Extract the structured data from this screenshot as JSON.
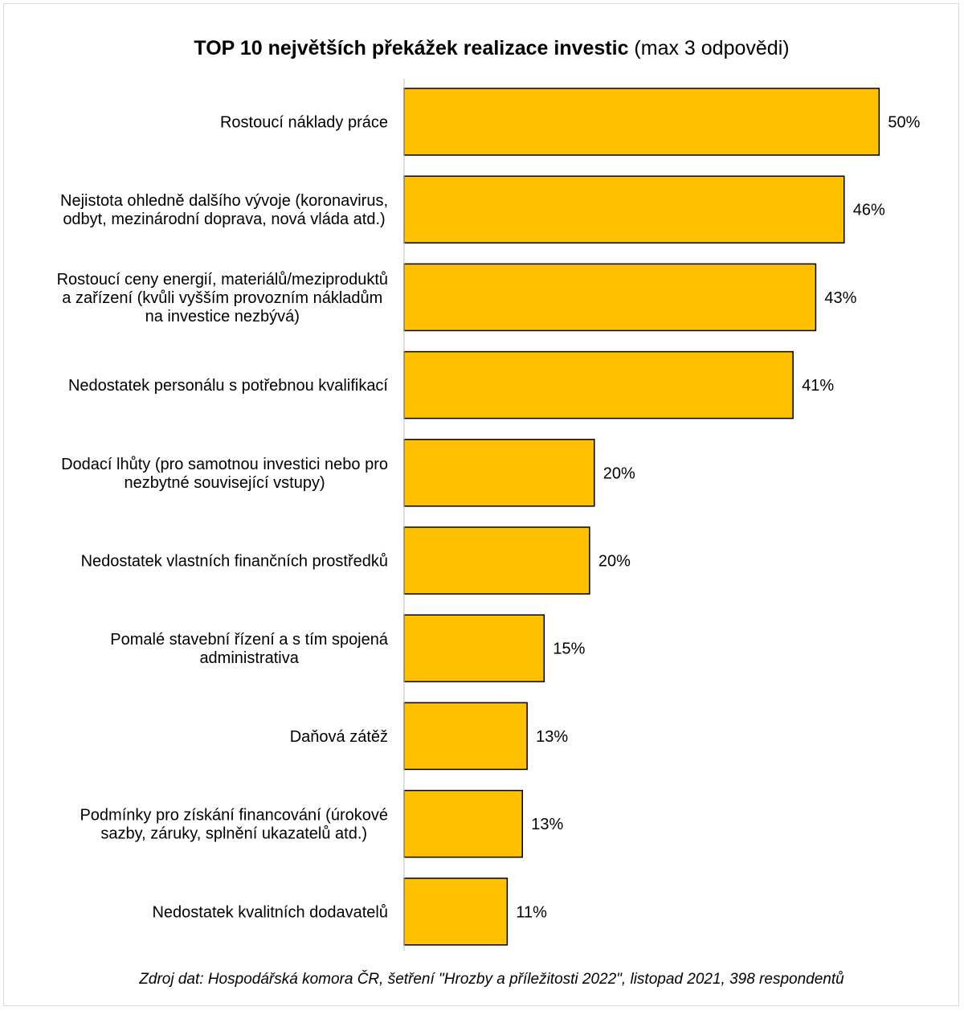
{
  "title": {
    "bold": "TOP 10 největších překážek realizace investic",
    "normal": " (max 3 odpovědi)"
  },
  "source": "Zdroj dat: Hospodářská komora ČR, šetření \"Hrozby a příležitosti 2022\", listopad 2021, 398 respondentů",
  "chart_data": {
    "type": "bar",
    "orientation": "horizontal",
    "title": "TOP 10 největších překážek realizace investic (max 3 odpovědi)",
    "categories": [
      [
        "Rostoucí náklady práce"
      ],
      [
        "Nejistota ohledně dalšího vývoje (koronavirus,",
        "odbyt, mezinárodní doprava, nová vláda atd.)"
      ],
      [
        "Rostoucí ceny energií, materiálů/meziproduktů",
        "a zařízení (kvůli vyšším provozním nákladům",
        "na investice nezbývá)"
      ],
      [
        "Nedostatek personálu s potřebnou kvalifikací"
      ],
      [
        "Dodací lhůty (pro samotnou investici nebo pro",
        "nezbytné související vstupy)"
      ],
      [
        "Nedostatek vlastních finančních prostředků"
      ],
      [
        "Pomalé stavební řízení a s tím spojená",
        "administrativa"
      ],
      [
        "Daňová zátěž"
      ],
      [
        "Podmínky pro získání financování (úrokové",
        "sazby, záruky, splnění ukazatelů atd.)"
      ],
      [
        "Nedostatek kvalitních dodavatelů"
      ]
    ],
    "values": [
      50.2,
      46.5,
      43.5,
      41.1,
      20.1,
      19.6,
      14.8,
      13.0,
      12.5,
      10.9
    ],
    "value_labels": [
      "50%",
      "46%",
      "43%",
      "41%",
      "20%",
      "20%",
      "15%",
      "13%",
      "13%",
      "11%"
    ],
    "xlim": [
      0,
      100
    ],
    "grid": false,
    "legend": "none",
    "bar_color": "#FFC000",
    "bar_edge_color": "#000000"
  }
}
